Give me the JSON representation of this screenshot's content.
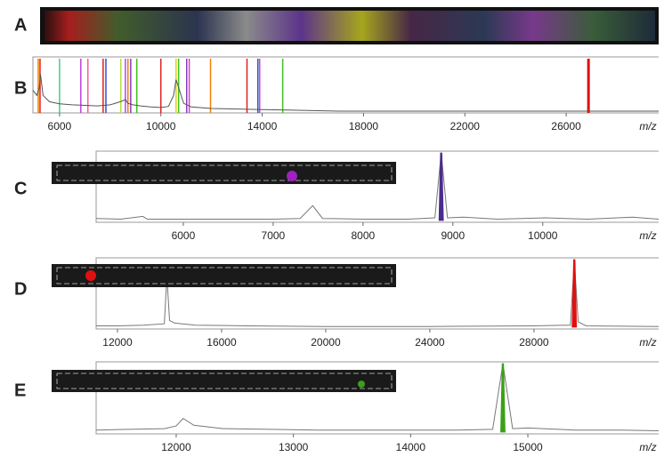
{
  "image_panel": {
    "label": "A"
  },
  "chart_data": [
    {
      "type": "line",
      "label": "B",
      "x_label": "m/z",
      "color": "#555555",
      "xlim": [
        4950,
        29650
      ],
      "xticks": [
        6000,
        10000,
        14000,
        18000,
        22000,
        26000
      ],
      "ylim": [
        0,
        100
      ],
      "x": [
        4950,
        5100,
        5200,
        5250,
        5350,
        5600,
        6000,
        6500,
        7000,
        7500,
        8000,
        8400,
        8600,
        8700,
        8900,
        9200,
        9600,
        10000,
        10300,
        10500,
        10600,
        10700,
        10900,
        11200,
        12000,
        13000,
        14000,
        15000,
        16000,
        17000,
        29650
      ],
      "values": [
        40,
        30,
        45,
        70,
        30,
        18,
        14,
        12,
        11,
        10,
        12,
        18,
        22,
        15,
        12,
        10,
        8,
        7,
        9,
        30,
        60,
        45,
        15,
        8,
        5,
        4,
        3,
        2,
        1,
        0,
        0
      ],
      "markers": [
        {
          "x": 5160,
          "color": "#f08000"
        },
        {
          "x": 5230,
          "color": "#e02020"
        },
        {
          "x": 6000,
          "color": "#40d080"
        },
        {
          "x": 6840,
          "color": "#c040e0"
        },
        {
          "x": 7120,
          "color": "#f060a0"
        },
        {
          "x": 7720,
          "color": "#e02020"
        },
        {
          "x": 7830,
          "color": "#3050d0"
        },
        {
          "x": 8420,
          "color": "#b0e040"
        },
        {
          "x": 8600,
          "color": "#c040e0"
        },
        {
          "x": 8700,
          "color": "#f08000"
        },
        {
          "x": 8810,
          "color": "#8040c0"
        },
        {
          "x": 9050,
          "color": "#40c020"
        },
        {
          "x": 10000,
          "color": "#e02020"
        },
        {
          "x": 10600,
          "color": "#e0d020"
        },
        {
          "x": 10700,
          "color": "#40c020"
        },
        {
          "x": 11020,
          "color": "#8040c0"
        },
        {
          "x": 11120,
          "color": "#e040c0"
        },
        {
          "x": 11960,
          "color": "#f08000"
        },
        {
          "x": 13400,
          "color": "#e02020"
        },
        {
          "x": 13830,
          "color": "#3050d0"
        },
        {
          "x": 13900,
          "color": "#e040c0"
        },
        {
          "x": 14810,
          "color": "#40c020"
        },
        {
          "x": 26880,
          "color": "#e01010"
        }
      ]
    },
    {
      "type": "line",
      "label": "C",
      "x_label": "m/z",
      "color": "#777777",
      "xlim": [
        5030,
        11290
      ],
      "xticks": [
        6000,
        7000,
        8000,
        9000,
        10000
      ],
      "ylim": [
        0,
        100
      ],
      "x": [
        5030,
        5300,
        5550,
        5600,
        6000,
        6500,
        7000,
        7300,
        7440,
        7550,
        8000,
        8500,
        8800,
        8870,
        8940,
        9120,
        9500,
        10030,
        10500,
        11000,
        11290
      ],
      "values": [
        3,
        2,
        6,
        2,
        2,
        2,
        2,
        3,
        22,
        3,
        2,
        2,
        4,
        100,
        4,
        5,
        2,
        4,
        2,
        5,
        2
      ],
      "peak": {
        "x": 8870,
        "value": 100,
        "color": "#4b2b8f"
      }
    },
    {
      "type": "line",
      "label": "D",
      "x_label": "m/z",
      "color": "#777777",
      "xlim": [
        11180,
        32790
      ],
      "xticks": [
        12000,
        16000,
        20000,
        24000,
        28000
      ],
      "ylim": [
        0,
        100
      ],
      "x": [
        11180,
        12000,
        13000,
        13800,
        13900,
        14000,
        14200,
        15000,
        17000,
        20000,
        24000,
        28000,
        29400,
        29550,
        29700,
        30000,
        32790
      ],
      "values": [
        2,
        2,
        3,
        5,
        75,
        10,
        6,
        3,
        2,
        1,
        1,
        2,
        3,
        100,
        8,
        2,
        1
      ],
      "peak": {
        "x": 29550,
        "value": 100,
        "color": "#e01010"
      }
    },
    {
      "type": "line",
      "label": "E",
      "x_label": "m/z",
      "color": "#777777",
      "xlim": [
        11317,
        16116
      ],
      "xticks": [
        12000,
        13000,
        14000,
        15000
      ],
      "ylim": [
        0,
        100
      ],
      "x": [
        11317,
        11600,
        11900,
        12000,
        12060,
        12150,
        12400,
        12800,
        13200,
        13600,
        14000,
        14400,
        14700,
        14787,
        14870,
        15000,
        15400,
        15800,
        16116
      ],
      "values": [
        3,
        4,
        5,
        9,
        20,
        10,
        5,
        4,
        3,
        3,
        3,
        3,
        4,
        100,
        5,
        6,
        3,
        3,
        2
      ],
      "peak": {
        "x": 14787,
        "value": 100,
        "color": "#3aa018"
      }
    }
  ]
}
